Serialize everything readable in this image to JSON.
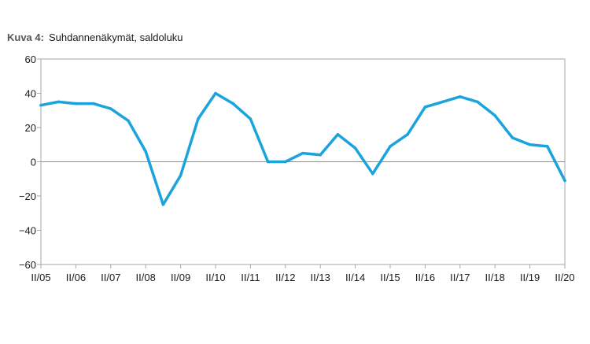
{
  "title_prefix": "Kuva 4:",
  "title": "Suhdannenäkymät, saldoluku",
  "colors": {
    "line": "#1aa3dc",
    "axis": "#8c8c8c",
    "frame": "#a6a6a6",
    "text": "#1a1a1a"
  },
  "chart_data": {
    "type": "line",
    "title": "Suhdannenäkymät, saldoluku",
    "xlabel": "",
    "ylabel": "",
    "ylim": [
      -60,
      60
    ],
    "yticks": [
      60,
      40,
      20,
      0,
      -20,
      -40,
      -60
    ],
    "yticklabels": [
      "60",
      "40",
      "20",
      "0",
      "−20",
      "−40",
      "−60"
    ],
    "xticklabels": [
      "II/05",
      "II/06",
      "II/07",
      "II/08",
      "II/09",
      "II/10",
      "II/11",
      "II/12",
      "II/13",
      "II/14",
      "II/15",
      "II/16",
      "II/17",
      "II/18",
      "II/19",
      "II/20"
    ],
    "grid": false,
    "legend": "none",
    "series": [
      {
        "x": [
          "II/05",
          "I/06",
          "II/06",
          "I/07",
          "II/07",
          "I/08",
          "II/08",
          "I/09",
          "II/09",
          "I/10",
          "II/10",
          "I/11",
          "II/11",
          "I/12",
          "II/12",
          "I/13",
          "II/13",
          "I/14",
          "II/14",
          "I/15",
          "II/15",
          "I/16",
          "II/16",
          "I/17",
          "II/17",
          "I/18",
          "II/18",
          "I/19",
          "II/19",
          "I/20",
          "II/20"
        ],
        "values": [
          33,
          35,
          34,
          34,
          31,
          24,
          6,
          -25,
          -8,
          25,
          40,
          34,
          25,
          0,
          0,
          5,
          4,
          16,
          8,
          -7,
          9,
          16,
          32,
          35,
          38,
          35,
          27,
          14,
          10,
          9,
          -11
        ]
      }
    ]
  }
}
